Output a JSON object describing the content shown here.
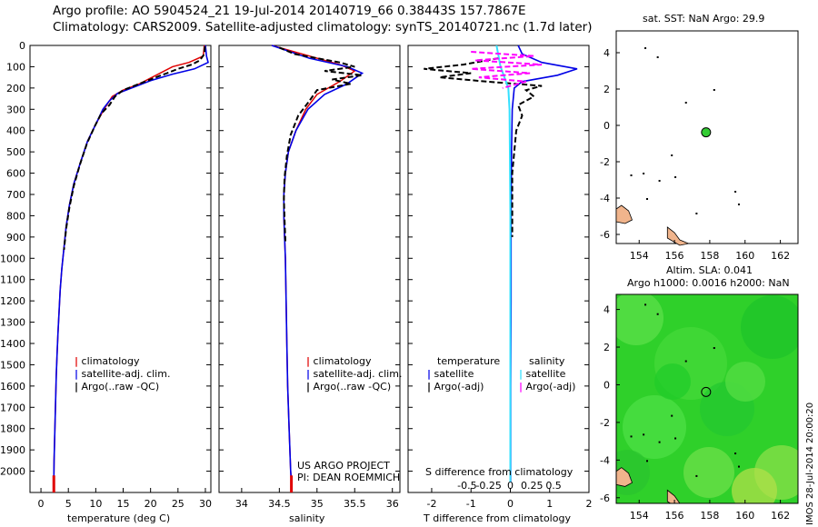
{
  "header": {
    "line1": "Argo profile: AO 5904524_21 19-Jul-2014 20140719_66 0.38443S 157.7867E",
    "line2": "Climatology: CARS2009. Satellite-adjusted climatology: synTS_20140721.nc (1.7d later)"
  },
  "sst_title": "sat. SST: NaN Argo: 29.9",
  "sla_title_1": "Altim. SLA: 0.041",
  "sla_title_2": "Argo h1000: 0.0016 h2000: NaN",
  "watermark": "IMOS 28-Jul-2014 20:00:20",
  "project_line1": "US ARGO PROJECT",
  "project_line2": "PI: DEAN ROEMMICH",
  "colors": {
    "climatology": "#e00000",
    "satellite": "#0000e6",
    "argo": "#000000",
    "sal_sat": "#33e0ff",
    "sal_argo": "#ff00ff",
    "sla_field": "#22d42a",
    "land": "#f0b48c",
    "float": "#33cc33"
  },
  "chart_data": [
    {
      "type": "line",
      "name": "temperature",
      "xlabel": "temperature (deg C)",
      "ylim": [
        2100,
        0
      ],
      "xlim": [
        -2,
        31
      ],
      "xticks": [
        0,
        5,
        10,
        15,
        20,
        25,
        30
      ],
      "yticks": [
        0,
        100,
        200,
        300,
        400,
        500,
        600,
        700,
        800,
        900,
        1000,
        1100,
        1200,
        1300,
        1400,
        1500,
        1600,
        1700,
        1800,
        1900,
        2000
      ],
      "legend": [
        "climatology",
        "satellite-adj. clim.",
        "Argo(..raw -QC)"
      ],
      "series": [
        {
          "name": "climatology",
          "points": [
            [
              29.8,
              0
            ],
            [
              29.6,
              50
            ],
            [
              27,
              80
            ],
            [
              24,
              100
            ],
            [
              21,
              140
            ],
            [
              18,
              180
            ],
            [
              15,
              210
            ],
            [
              13,
              240
            ],
            [
              11.5,
              300
            ],
            [
              10,
              370
            ],
            [
              8.5,
              450
            ],
            [
              7.2,
              550
            ],
            [
              6,
              650
            ],
            [
              5.2,
              750
            ],
            [
              4.6,
              850
            ],
            [
              4.2,
              950
            ],
            [
              3.8,
              1050
            ],
            [
              3.5,
              1150
            ],
            [
              3.3,
              1250
            ],
            [
              3.1,
              1350
            ],
            [
              2.95,
              1450
            ],
            [
              2.8,
              1550
            ],
            [
              2.7,
              1650
            ],
            [
              2.6,
              1750
            ],
            [
              2.5,
              1850
            ],
            [
              2.4,
              1950
            ],
            [
              2.35,
              2050
            ]
          ]
        },
        {
          "name": "satellite-adj. clim.",
          "points": [
            [
              30,
              0
            ],
            [
              30.2,
              50
            ],
            [
              30.5,
              80
            ],
            [
              28,
              110
            ],
            [
              24,
              135
            ],
            [
              20,
              165
            ],
            [
              17,
              195
            ],
            [
              14,
              225
            ],
            [
              12.5,
              260
            ],
            [
              11.3,
              300
            ],
            [
              10,
              370
            ],
            [
              8.5,
              450
            ],
            [
              7.2,
              550
            ],
            [
              6,
              650
            ],
            [
              5.2,
              750
            ],
            [
              4.6,
              850
            ],
            [
              4.2,
              950
            ],
            [
              3.8,
              1050
            ],
            [
              3.5,
              1150
            ],
            [
              3.3,
              1250
            ],
            [
              3.1,
              1350
            ],
            [
              2.95,
              1450
            ],
            [
              2.8,
              1550
            ],
            [
              2.7,
              1650
            ],
            [
              2.6,
              1750
            ],
            [
              2.5,
              1850
            ],
            [
              2.4,
              1950
            ],
            [
              2.35,
              2050
            ]
          ]
        },
        {
          "name": "Argo(..raw -QC)",
          "points": [
            [
              29.9,
              5
            ],
            [
              29.8,
              40
            ],
            [
              29,
              70
            ],
            [
              27.5,
              90
            ],
            [
              25,
              110
            ],
            [
              23,
              130
            ],
            [
              21,
              150
            ],
            [
              17.5,
              185
            ],
            [
              15,
              210
            ],
            [
              13.5,
              240
            ],
            [
              12.5,
              280
            ],
            [
              11,
              320
            ],
            [
              9.8,
              380
            ],
            [
              8.4,
              460
            ],
            [
              7.1,
              560
            ],
            [
              6,
              660
            ],
            [
              5.2,
              760
            ],
            [
              4.6,
              860
            ],
            [
              4.2,
              960
            ]
          ]
        }
      ]
    },
    {
      "type": "line",
      "name": "salinity",
      "xlabel": "salinity",
      "ylim": [
        2100,
        0
      ],
      "xlim": [
        33.7,
        36.1
      ],
      "xticks": [
        34,
        34.5,
        35,
        35.5,
        36
      ],
      "legend": [
        "climatology",
        "satellite-adj. clim.",
        "Argo(..raw -QC)"
      ],
      "series": [
        {
          "name": "climatology",
          "points": [
            [
              34.4,
              0
            ],
            [
              34.9,
              50
            ],
            [
              35.3,
              90
            ],
            [
              35.5,
              120
            ],
            [
              35.3,
              170
            ],
            [
              35.0,
              230
            ],
            [
              34.85,
              300
            ],
            [
              34.72,
              400
            ],
            [
              34.62,
              500
            ],
            [
              34.58,
              600
            ],
            [
              34.56,
              700
            ],
            [
              34.56,
              800
            ],
            [
              34.57,
              900
            ],
            [
              34.58,
              1000
            ],
            [
              34.59,
              1200
            ],
            [
              34.6,
              1400
            ],
            [
              34.61,
              1600
            ],
            [
              34.63,
              1800
            ],
            [
              34.65,
              2000
            ],
            [
              34.66,
              2050
            ]
          ]
        },
        {
          "name": "satellite-adj. clim.",
          "points": [
            [
              34.4,
              0
            ],
            [
              34.9,
              60
            ],
            [
              35.4,
              100
            ],
            [
              35.6,
              130
            ],
            [
              35.4,
              180
            ],
            [
              35.1,
              230
            ],
            [
              34.88,
              300
            ],
            [
              34.72,
              400
            ],
            [
              34.62,
              500
            ],
            [
              34.58,
              600
            ],
            [
              34.56,
              700
            ],
            [
              34.56,
              800
            ],
            [
              34.57,
              900
            ],
            [
              34.58,
              1000
            ],
            [
              34.59,
              1200
            ],
            [
              34.6,
              1400
            ],
            [
              34.61,
              1600
            ],
            [
              34.63,
              1800
            ],
            [
              34.65,
              2000
            ],
            [
              34.66,
              2050
            ]
          ]
        },
        {
          "name": "Argo(..raw -QC)",
          "points": [
            [
              34.5,
              10
            ],
            [
              34.7,
              40
            ],
            [
              35.0,
              60
            ],
            [
              35.3,
              80
            ],
            [
              35.5,
              100
            ],
            [
              35.1,
              120
            ],
            [
              35.6,
              140
            ],
            [
              35.2,
              160
            ],
            [
              35.45,
              180
            ],
            [
              35.0,
              210
            ],
            [
              34.9,
              260
            ],
            [
              34.75,
              330
            ],
            [
              34.65,
              420
            ],
            [
              34.6,
              520
            ],
            [
              34.57,
              620
            ],
            [
              34.56,
              720
            ],
            [
              34.57,
              820
            ],
            [
              34.58,
              920
            ]
          ]
        }
      ]
    },
    {
      "type": "line",
      "name": "difference from climatology",
      "xlabel": "T difference from climatology",
      "xlabel_top": "S difference from climatology",
      "ylim": [
        2100,
        0
      ],
      "xlim": [
        -2.6,
        2.0
      ],
      "xticks": [
        -2,
        -1,
        0,
        1,
        2
      ],
      "xtick_labels_top": [
        "-0.5",
        "-0.25",
        "0",
        "0.25",
        "0.5"
      ],
      "legend_headers": [
        "temperature",
        "salinity"
      ],
      "legend": [
        "satellite",
        "Argo(-adj)",
        "satellite",
        "Argo(-adj)"
      ],
      "series": [
        {
          "name": "temperature satellite",
          "points": [
            [
              0.2,
              0
            ],
            [
              0.3,
              40
            ],
            [
              0.8,
              80
            ],
            [
              1.7,
              110
            ],
            [
              1.2,
              140
            ],
            [
              0.3,
              170
            ],
            [
              0.1,
              200
            ],
            [
              0.05,
              300
            ],
            [
              0.03,
              500
            ],
            [
              0.02,
              800
            ],
            [
              0.02,
              1200
            ],
            [
              0.01,
              1600
            ],
            [
              0.01,
              2050
            ]
          ]
        },
        {
          "name": "temperature Argo(-adj)",
          "points": [
            [
              -0.3,
              60
            ],
            [
              -1.2,
              90
            ],
            [
              -2.2,
              110
            ],
            [
              -1.0,
              130
            ],
            [
              -1.8,
              150
            ],
            [
              -0.6,
              170
            ],
            [
              0.8,
              190
            ],
            [
              0.4,
              210
            ],
            [
              0.6,
              240
            ],
            [
              0.2,
              280
            ],
            [
              0.3,
              330
            ],
            [
              0.15,
              400
            ],
            [
              0.1,
              500
            ],
            [
              0.05,
              600
            ],
            [
              0.05,
              700
            ],
            [
              0.05,
              800
            ],
            [
              0.05,
              900
            ]
          ]
        },
        {
          "name": "salinity satellite",
          "points": [
            [
              -0.35,
              0
            ],
            [
              -0.3,
              50
            ],
            [
              -0.25,
              100
            ],
            [
              -0.15,
              150
            ],
            [
              -0.05,
              200
            ],
            [
              -0.02,
              300
            ],
            [
              -0.01,
              500
            ],
            [
              0.0,
              800
            ],
            [
              0.0,
              1200
            ],
            [
              0.0,
              1600
            ],
            [
              0.0,
              2050
            ]
          ]
        },
        {
          "name": "salinity Argo(-adj)",
          "points": [
            [
              -1.0,
              30
            ],
            [
              0.6,
              50
            ],
            [
              -0.9,
              70
            ],
            [
              0.8,
              90
            ],
            [
              -1.0,
              110
            ],
            [
              0.5,
              130
            ],
            [
              -0.8,
              150
            ],
            [
              0.4,
              170
            ],
            [
              -0.2,
              200
            ]
          ]
        }
      ]
    },
    {
      "type": "scatter",
      "name": "sat. SST map",
      "xlim": [
        152.7,
        163.0
      ],
      "ylim": [
        -6.5,
        5.2
      ],
      "xticks": [
        154,
        156,
        158,
        160,
        162
      ],
      "yticks": [
        4,
        2,
        0,
        -2,
        -4,
        -6
      ],
      "float_position": [
        157.79,
        -0.38
      ]
    },
    {
      "type": "heatmap",
      "name": "Altim. SLA map",
      "xlim": [
        152.7,
        163.0
      ],
      "ylim": [
        -6.3,
        4.8
      ],
      "xticks": [
        154,
        156,
        158,
        160,
        162
      ],
      "yticks": [
        4,
        2,
        0,
        -2,
        -4,
        -6
      ],
      "float_position": [
        157.79,
        -0.38
      ]
    }
  ]
}
